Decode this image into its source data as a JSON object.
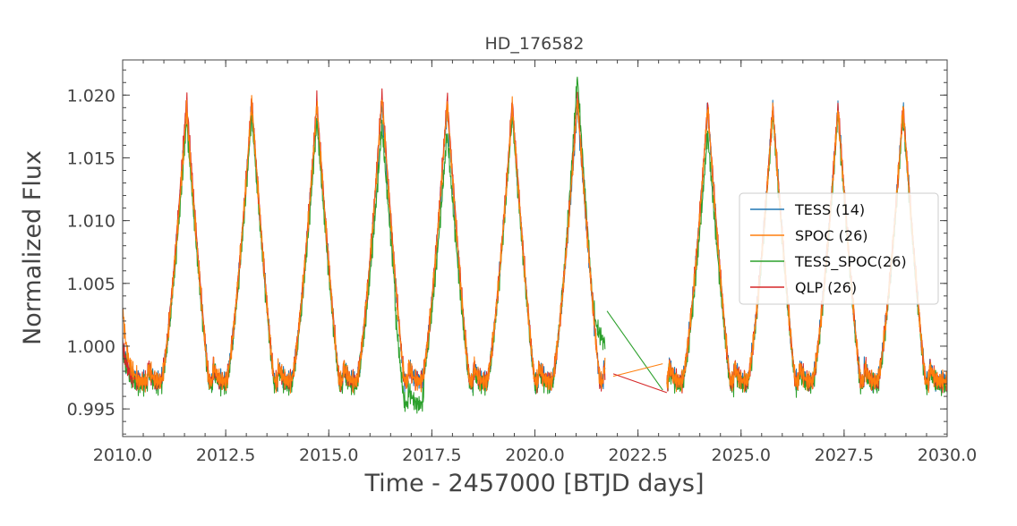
{
  "chart_data": {
    "type": "line",
    "title": "HD_176582",
    "xlabel": "Time - 2457000 [BTJD days]",
    "ylabel": "Normalized Flux",
    "xlim": [
      2010.0,
      2030.0
    ],
    "ylim": [
      0.9928,
      1.0228
    ],
    "x_ticks": [
      2010.0,
      2012.5,
      2015.0,
      2017.5,
      2020.0,
      2022.5,
      2025.0,
      2027.5,
      2030.0
    ],
    "x_tick_labels": [
      "2010.0",
      "2012.5",
      "2015.0",
      "2017.5",
      "2020.0",
      "2022.5",
      "2025.0",
      "2027.5",
      "2030.0"
    ],
    "y_ticks": [
      0.995,
      1.0,
      1.005,
      1.01,
      1.015,
      1.02
    ],
    "y_tick_labels": [
      "0.995",
      "1.000",
      "1.005",
      "1.010",
      "1.015",
      "1.020"
    ],
    "grid": false,
    "legend_position": "center-right",
    "pulsation": {
      "period_days": 1.58,
      "peak_times": [
        2011.55,
        2013.13,
        2014.71,
        2016.29,
        2017.87,
        2019.45,
        2021.03,
        2024.19,
        2025.77,
        2027.35,
        2028.93
      ]
    },
    "series": [
      {
        "name": "TESS (14)",
        "color": "#1f77b4",
        "peak_flux": [
          1.019,
          1.0192,
          1.019,
          1.0192,
          1.019,
          1.019,
          1.0192,
          1.019,
          1.019,
          1.019,
          1.019
        ]
      },
      {
        "name": "SPOC (26)",
        "color": "#ff7f0e",
        "peak_flux": [
          1.019,
          1.0195,
          1.0193,
          1.0198,
          1.0193,
          1.0192,
          1.0196,
          1.019,
          1.0189,
          1.0189,
          1.019
        ]
      },
      {
        "name": "TESS_SPOC(26)",
        "color": "#2ca02c",
        "peak_flux": [
          1.018,
          1.0185,
          1.018,
          1.0175,
          1.017,
          1.0185,
          1.0215,
          1.017,
          1.0185,
          1.0185,
          1.0185
        ]
      },
      {
        "name": "QLP (26)",
        "color": "#d62728",
        "peak_flux": [
          1.0198,
          1.0196,
          1.0196,
          1.0202,
          1.0198,
          1.0195,
          1.0199,
          1.0192,
          1.0191,
          1.0192,
          1.0191
        ]
      }
    ],
    "segments": [
      {
        "from": 2010.0,
        "to": 2021.7
      },
      {
        "from": 2023.2,
        "to": 2030.0
      }
    ],
    "gap_connectors": [
      {
        "series": "TESS_SPOC(26)",
        "x": [
          2021.75,
          2023.1
        ],
        "y": [
          1.0028,
          0.9965
        ]
      },
      {
        "series": "SPOC (26)",
        "x": [
          2021.9,
          2023.1
        ],
        "y": [
          0.9976,
          0.9986
        ]
      },
      {
        "series": "QLP (26)",
        "x": [
          2021.9,
          2023.2
        ],
        "y": [
          0.9978,
          0.9963
        ]
      }
    ]
  }
}
